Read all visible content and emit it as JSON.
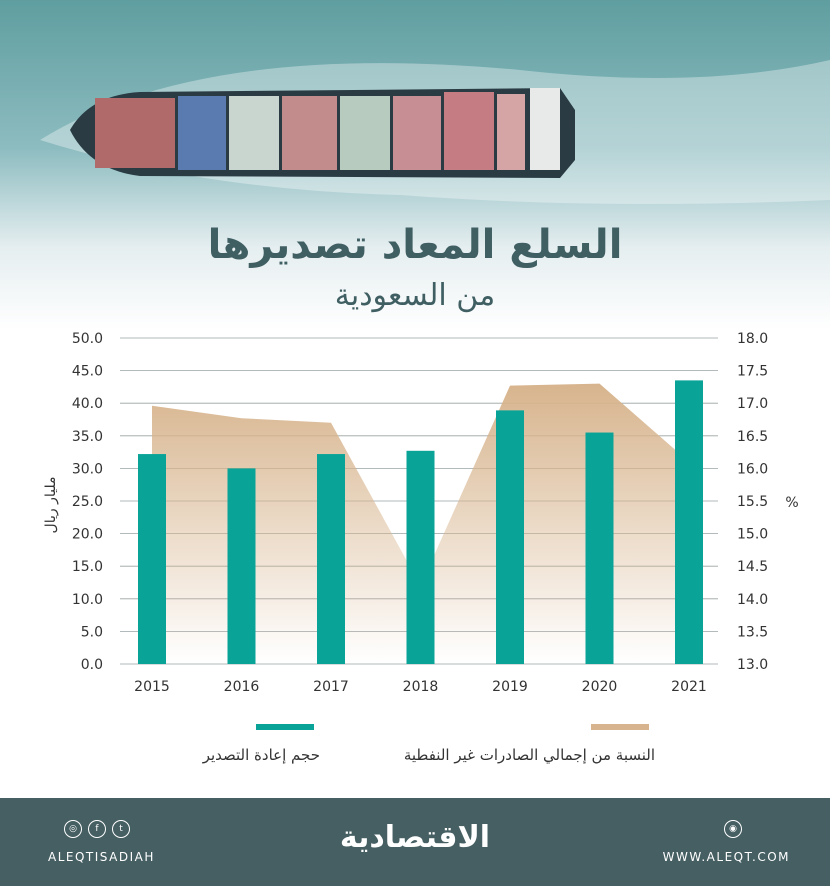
{
  "header": {
    "title": "السلع المعاد تصديرها",
    "subtitle": "من السعودية"
  },
  "chart_data": {
    "type": "bar",
    "categories": [
      "2015",
      "2016",
      "2017",
      "2018",
      "2019",
      "2020",
      "2021"
    ],
    "series": [
      {
        "name": "حجم إعادة التصدير",
        "type": "bar",
        "axis": "left",
        "color": "#0aa398",
        "values": [
          32.2,
          30.0,
          32.2,
          32.7,
          38.9,
          35.5,
          43.5
        ]
      },
      {
        "name": "النسبة من إجمالي الصادرات غير النفطية",
        "type": "area",
        "axis": "right",
        "color": "#d7b48d",
        "values": [
          16.96,
          16.77,
          16.7,
          14.2,
          17.27,
          17.3,
          16.1
        ]
      }
    ],
    "ylabel": "مليار ريال",
    "ylabel_right": "%",
    "ylim": [
      0,
      50
    ],
    "ylim_right": [
      13,
      18
    ],
    "yticks": [
      "0.0",
      "5.0",
      "10.0",
      "15.0",
      "20.0",
      "25.0",
      "30.0",
      "35.0",
      "40.0",
      "45.0",
      "50.0"
    ],
    "yticks_right": [
      "13.0",
      "13.5",
      "14.0",
      "14.5",
      "15.0",
      "15.5",
      "16.0",
      "16.5",
      "17.0",
      "17.5",
      "18.0"
    ],
    "grid": true
  },
  "legend": {
    "bars_label": "حجم إعادة التصدير",
    "area_label": "النسبة من إجمالي الصادرات غير النفطية"
  },
  "footer": {
    "logo": "الاقتصادية",
    "handle": "ALEQTISADIAH",
    "website": "WWW.ALEQT.COM",
    "social_icons": [
      "instagram-icon",
      "facebook-icon",
      "twitter-icon"
    ],
    "web_icon": "globe-icon"
  }
}
